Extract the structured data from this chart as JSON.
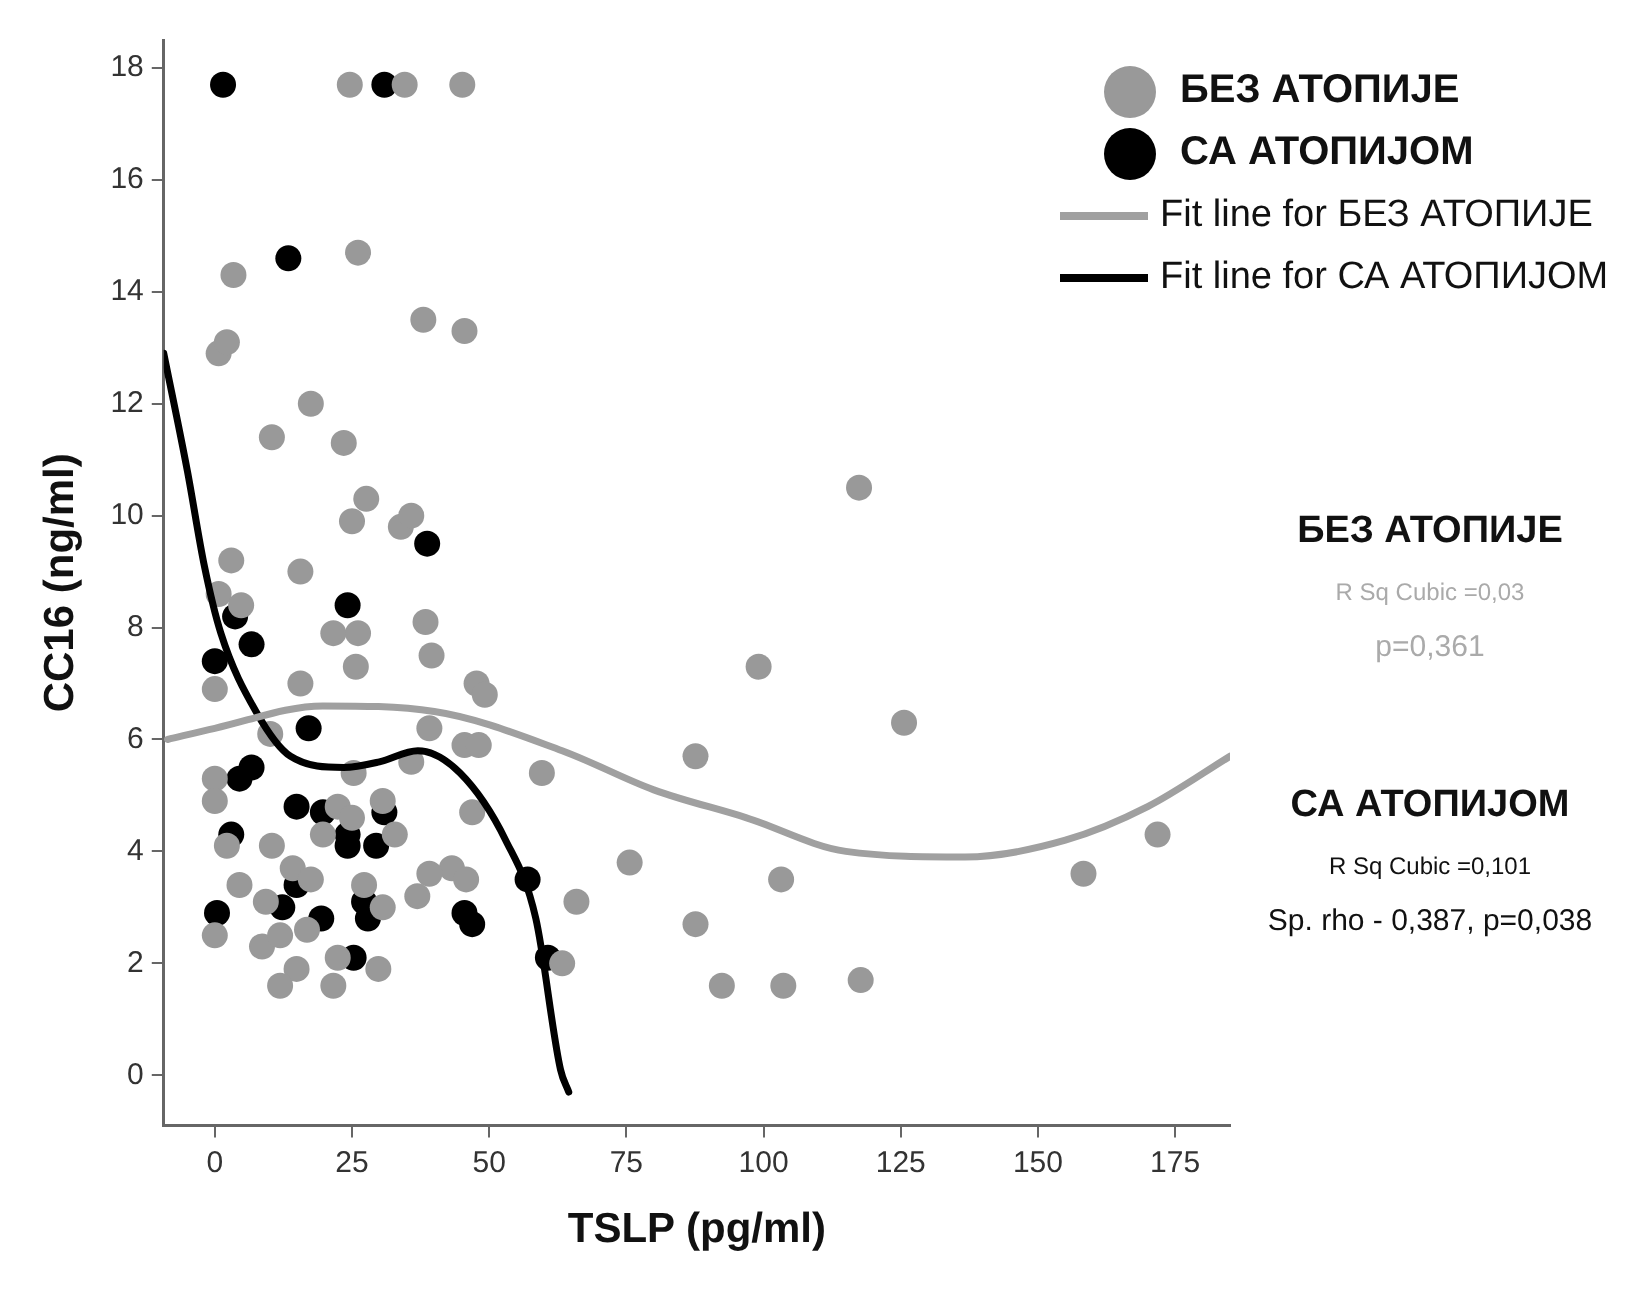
{
  "chart_data": {
    "type": "scatter",
    "xlabel": "TSLP (pg/ml)",
    "ylabel": "CC16 (ng/ml)",
    "xlim": [
      -9.3,
      185
    ],
    "ylim": [
      -0.9,
      18.5
    ],
    "xticks": [
      0,
      25,
      50,
      75,
      100,
      125,
      150,
      175
    ],
    "yticks": [
      0,
      2,
      4,
      6,
      8,
      10,
      12,
      14,
      16,
      18
    ],
    "grid": false,
    "legend": "top right",
    "annotations": [
      "БЕЗ АТОПИЈЕ",
      "R Sq Cubic =0,03",
      "p=0,361",
      "СА АТОПИЈОМ",
      "R Sq Cubic =0,101",
      "Sp. rho - 0,387, p=0,038"
    ],
    "series": [
      {
        "name": "БЕЗ АТОПИЈЕ",
        "marker": "circle",
        "color": "#999999",
        "x": [
          24.6,
          34.6,
          45.1,
          26.1,
          3.4,
          38.0,
          45.5,
          0.7,
          2.2,
          17.5,
          10.4,
          23.5,
          27.6,
          25.0,
          33.9,
          35.8,
          3.0,
          15.6,
          0.7,
          4.8,
          21.6,
          26.1,
          25.7,
          38.4,
          39.5,
          0.0,
          15.6,
          47.7,
          49.2,
          10.1,
          39.1,
          45.5,
          48.1,
          25.3,
          35.8,
          59.6,
          0.0,
          0.0,
          22.4,
          30.6,
          25.0,
          19.7,
          32.8,
          2.2,
          10.4,
          14.2,
          17.5,
          43.2,
          39.1,
          45.8,
          46.9,
          4.5,
          9.3,
          27.2,
          30.6,
          36.9,
          0.0,
          16.8,
          8.6,
          11.9,
          22.4,
          14.9,
          29.8,
          11.9,
          21.6,
          63.3,
          117.4,
          99.1,
          125.6,
          87.6,
          75.6,
          65.9,
          103.2,
          87.6,
          158.3,
          171.8,
          92.4,
          103.6,
          117.7
        ],
        "values": [
          17.7,
          17.7,
          17.7,
          14.7,
          14.3,
          13.5,
          13.3,
          12.9,
          13.1,
          12.0,
          11.4,
          11.3,
          10.3,
          9.9,
          9.8,
          10.0,
          9.2,
          9.0,
          8.6,
          8.4,
          7.9,
          7.9,
          7.3,
          8.1,
          7.5,
          6.9,
          7.0,
          7.0,
          6.8,
          6.1,
          6.2,
          5.9,
          5.9,
          5.4,
          5.6,
          5.4,
          5.3,
          4.9,
          4.8,
          4.9,
          4.6,
          4.3,
          4.3,
          4.1,
          4.1,
          3.7,
          3.5,
          3.7,
          3.6,
          3.5,
          4.7,
          3.4,
          3.1,
          3.4,
          3.0,
          3.2,
          2.5,
          2.6,
          2.3,
          2.5,
          2.1,
          1.9,
          1.9,
          1.6,
          1.6,
          2.0,
          10.5,
          7.3,
          6.3,
          5.7,
          3.8,
          3.1,
          3.5,
          2.7,
          3.6,
          4.3,
          1.6,
          1.6,
          1.7
        ]
      },
      {
        "name": "СА АТОПИЈОМ",
        "marker": "circle",
        "color": "#000000",
        "x": [
          1.5,
          30.9,
          13.4,
          38.7,
          0.0,
          3.7,
          6.7,
          24.2,
          17.1,
          6.7,
          4.5,
          14.9,
          19.7,
          24.2,
          24.2,
          30.9,
          29.4,
          3.0,
          0.4,
          12.3,
          14.9,
          19.4,
          27.2,
          27.9,
          25.3,
          45.5,
          46.9,
          57.0,
          60.7
        ],
        "values": [
          17.7,
          17.7,
          14.6,
          9.5,
          7.4,
          8.2,
          7.7,
          8.4,
          6.2,
          5.5,
          5.3,
          4.8,
          4.7,
          4.3,
          4.1,
          4.7,
          4.1,
          4.3,
          2.9,
          3.0,
          3.4,
          2.8,
          3.1,
          2.8,
          2.1,
          2.9,
          2.7,
          3.5,
          2.1
        ]
      },
      {
        "name": "Fit line for БЕЗ АТОПИЈЕ",
        "type": "line",
        "color": "#a0a0a0",
        "x": [
          -8.6,
          0,
          19.7,
          40,
          63.3,
          80,
          96.9,
          115,
          136.7,
          155,
          170,
          185
        ],
        "values": [
          6.0,
          6.2,
          6.6,
          6.5,
          5.8,
          5.1,
          4.6,
          4.0,
          3.9,
          4.2,
          4.8,
          5.7
        ]
      },
      {
        "name": "Fit line for СА АТОПИЈОМ",
        "type": "line",
        "color": "#000000",
        "x": [
          -9.3,
          -5,
          -1.9,
          1.1,
          7.5,
          13.8,
          23.5,
          30,
          37,
          44.7,
          53,
          58.5,
          63,
          64.5
        ],
        "values": [
          12.9,
          10.8,
          9.1,
          7.9,
          6.5,
          5.7,
          5.5,
          5.6,
          5.8,
          5.4,
          4.2,
          2.8,
          0.1,
          -0.3
        ]
      }
    ]
  }
}
